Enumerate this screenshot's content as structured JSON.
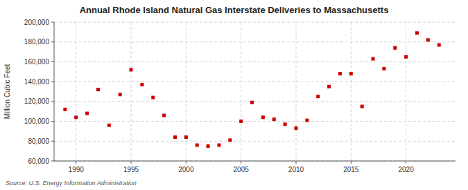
{
  "chart_data": {
    "type": "scatter",
    "title": "Annual Rhode Island Natural Gas Interstate Deliveries to Massachusetts",
    "ylabel": "Million Cubic Feet",
    "annotations": [
      "Source: U.S. Energy Information Administration"
    ],
    "x": [
      1989,
      1990,
      1991,
      1992,
      1993,
      1994,
      1995,
      1996,
      1997,
      1998,
      1999,
      2000,
      2001,
      2002,
      2003,
      2004,
      2005,
      2006,
      2007,
      2008,
      2009,
      2010,
      2011,
      2012,
      2013,
      2014,
      2015,
      2016,
      2017,
      2018,
      2019,
      2020,
      2021,
      2022,
      2023
    ],
    "values": [
      112000,
      104000,
      108000,
      132000,
      96000,
      127000,
      152000,
      137000,
      124000,
      106000,
      84000,
      84000,
      76000,
      75000,
      76000,
      81000,
      100000,
      119000,
      104000,
      102000,
      97000,
      93000,
      101000,
      125000,
      135000,
      148000,
      148000,
      115000,
      163000,
      153000,
      174000,
      165000,
      189000,
      182000,
      177000
    ],
    "color": "#cc0000",
    "marker": "square",
    "xlim": [
      1988,
      2024.5
    ],
    "xticks": [
      1990,
      1995,
      2000,
      2005,
      2010,
      2015,
      2020
    ],
    "ylim": [
      60000,
      200000
    ],
    "yticks": [
      {
        "value": 60000,
        "label": "60,000"
      },
      {
        "value": 80000,
        "label": "80,000"
      },
      {
        "value": 100000,
        "label": "100,000"
      },
      {
        "value": 120000,
        "label": "120,000"
      },
      {
        "value": 140000,
        "label": "140,000"
      },
      {
        "value": 160000,
        "label": "160,000"
      },
      {
        "value": 180000,
        "label": "180,000"
      },
      {
        "value": 200000,
        "label": "200,000"
      }
    ],
    "grid": true
  }
}
